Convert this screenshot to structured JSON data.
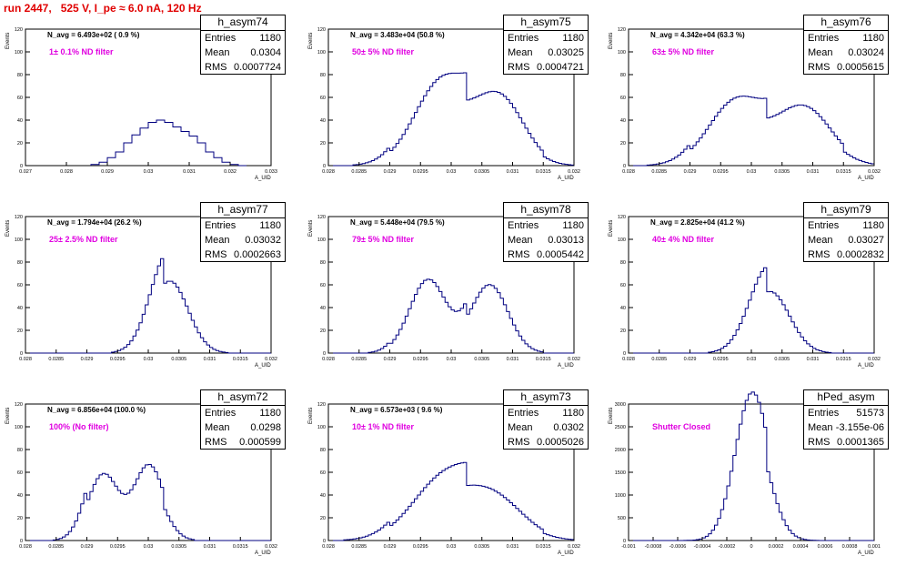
{
  "page": {
    "title": "run 2447,   525 V, I_pe ≈ 6.0 nA, 120 Hz"
  },
  "chart_data": [
    {
      "type": "histogram",
      "name": "h_asym74",
      "stats": {
        "entries": "1180",
        "mean": "0.0304",
        "rms": "0.0007724"
      },
      "navg": "N_avg = 6.493e+02 ( 0.9 %)",
      "filter": "1± 0.1% ND filter",
      "xlabel": "A_UID",
      "ylabel": "Events",
      "xlim": [
        0.027,
        0.033
      ],
      "ylim": [
        0,
        120
      ],
      "xticks": [
        "0.027",
        "0.028",
        "0.029",
        "0.03",
        "0.031",
        "0.032",
        "0.033"
      ],
      "yticks": [
        "0",
        "20",
        "40",
        "60",
        "80",
        "100",
        "120"
      ],
      "bins": [
        [
          0.0286,
          0,
          1
        ],
        [
          0.0288,
          1,
          3
        ],
        [
          0.029,
          3,
          7
        ],
        [
          0.0292,
          7,
          12
        ],
        [
          0.0294,
          12,
          20
        ],
        [
          0.0296,
          20,
          27
        ],
        [
          0.0298,
          27,
          33
        ],
        [
          0.03,
          33,
          38
        ],
        [
          0.0302,
          38,
          40
        ],
        [
          0.0304,
          40,
          38
        ],
        [
          0.0306,
          38,
          34
        ],
        [
          0.0308,
          34,
          30
        ],
        [
          0.031,
          30,
          26
        ],
        [
          0.0312,
          26,
          20
        ],
        [
          0.0314,
          20,
          12
        ],
        [
          0.0316,
          12,
          7
        ],
        [
          0.0318,
          7,
          3
        ],
        [
          0.032,
          3,
          1
        ],
        [
          0.0322,
          1,
          0
        ]
      ]
    },
    {
      "type": "histogram",
      "name": "h_asym75",
      "stats": {
        "entries": "1180",
        "mean": "0.03025",
        "rms": "0.0004721"
      },
      "navg": "N_avg = 3.483e+04 (50.8 %)",
      "filter": "50± 5% ND filter",
      "xlabel": "A_UID",
      "ylabel": "Events",
      "xlim": [
        0.028,
        0.032
      ],
      "ylim": [
        0,
        120
      ],
      "xticks": [
        "0.028",
        "0.0285",
        "0.029",
        "0.0295",
        "0.03",
        "0.0305",
        "0.031",
        "0.0315",
        "0.032"
      ],
      "yticks": [
        "0",
        "20",
        "40",
        "60",
        "80",
        "100",
        "120"
      ],
      "bins": [
        [
          0.0298,
          0.00045,
          70
        ],
        [
          0.03075,
          0.0004,
          60
        ]
      ]
    },
    {
      "type": "histogram",
      "name": "h_asym76",
      "stats": {
        "entries": "1180",
        "mean": "0.03024",
        "rms": "0.0005615"
      },
      "navg": "N_avg = 4.342e+04 (63.3 %)",
      "filter": "63± 5% ND filter",
      "xlabel": "A_UID",
      "ylabel": "Events",
      "xlim": [
        0.028,
        0.032
      ],
      "ylim": [
        0,
        120
      ],
      "xticks": [
        "0.028",
        "0.0285",
        "0.029",
        "0.0295",
        "0.03",
        "0.0305",
        "0.031",
        "0.0315",
        "0.032"
      ],
      "yticks": [
        "0",
        "20",
        "40",
        "60",
        "80",
        "100",
        "120"
      ],
      "bins": [
        [
          0.0297,
          0.00045,
          55
        ],
        [
          0.0308,
          0.00045,
          52
        ]
      ]
    },
    {
      "type": "histogram",
      "name": "h_asym77",
      "stats": {
        "entries": "1180",
        "mean": "0.03032",
        "rms": "0.0002663"
      },
      "navg": "N_avg = 1.794e+04 (26.2 %)",
      "filter": "25± 2.5% ND filter",
      "xlabel": "A_UID",
      "ylabel": "Events",
      "xlim": [
        0.028,
        0.032
      ],
      "ylim": [
        0,
        120
      ],
      "xticks": [
        "0.028",
        "0.0285",
        "0.029",
        "0.0295",
        "0.03",
        "0.0305",
        "0.031",
        "0.0315",
        "0.032"
      ],
      "yticks": [
        "0",
        "20",
        "40",
        "60",
        "80",
        "100",
        "120"
      ],
      "bins": [
        [
          0.03032,
          0.0003,
          75
        ]
      ]
    },
    {
      "type": "histogram",
      "name": "h_asym78",
      "stats": {
        "entries": "1180",
        "mean": "0.03013",
        "rms": "0.0005442"
      },
      "navg": "N_avg = 5.448e+04 (79.5 %)",
      "filter": "79± 5% ND filter",
      "xlabel": "A_UID",
      "ylabel": "Events",
      "xlim": [
        0.028,
        0.032
      ],
      "ylim": [
        0,
        120
      ],
      "xticks": [
        "0.028",
        "0.0285",
        "0.029",
        "0.0295",
        "0.03",
        "0.0305",
        "0.031",
        "0.0315",
        "0.032"
      ],
      "yticks": [
        "0",
        "20",
        "40",
        "60",
        "80",
        "100",
        "120"
      ],
      "bins": [
        [
          0.0296,
          0.0003,
          65
        ],
        [
          0.0306,
          0.0003,
          65
        ]
      ]
    },
    {
      "type": "histogram",
      "name": "h_asym79",
      "stats": {
        "entries": "1180",
        "mean": "0.03027",
        "rms": "0.0002832"
      },
      "navg": "N_avg = 2.825e+04 (41.2 %)",
      "filter": "40± 4% ND filter",
      "xlabel": "A_UID",
      "ylabel": "Events",
      "xlim": [
        0.028,
        0.032
      ],
      "ylim": [
        0,
        120
      ],
      "xticks": [
        "0.028",
        "0.0285",
        "0.029",
        "0.0295",
        "0.03",
        "0.0305",
        "0.031",
        "0.0315",
        "0.032"
      ],
      "yticks": [
        "0",
        "20",
        "40",
        "60",
        "80",
        "100",
        "120"
      ],
      "bins": [
        [
          0.03027,
          0.00032,
          65
        ]
      ]
    },
    {
      "type": "histogram",
      "name": "h_asym72",
      "stats": {
        "entries": "1180",
        "mean": "0.0298",
        "rms": "0.000599"
      },
      "navg": "N_avg = 6.856e+04 (100.0 %)",
      "filter": "100% (No filter)",
      "xlabel": "A_UID",
      "ylabel": "Events",
      "xlim": [
        0.028,
        0.032
      ],
      "ylim": [
        0,
        120
      ],
      "xticks": [
        "0.028",
        "0.0285",
        "0.029",
        "0.0295",
        "0.03",
        "0.0305",
        "0.031",
        "0.0315",
        "0.032"
      ],
      "yticks": [
        "0",
        "20",
        "40",
        "60",
        "80",
        "100",
        "120"
      ],
      "bins": [
        [
          0.02925,
          0.00025,
          65
        ],
        [
          0.03,
          0.00025,
          60
        ]
      ]
    },
    {
      "type": "histogram",
      "name": "h_asym73",
      "stats": {
        "entries": "1180",
        "mean": "0.0302",
        "rms": "0.0005026"
      },
      "navg": "N_avg = 6.573e+03 ( 9.6 %)",
      "filter": "10± 1% ND filter",
      "xlabel": "A_UID",
      "ylabel": "Events",
      "xlim": [
        0.028,
        0.032
      ],
      "ylim": [
        0,
        120
      ],
      "xticks": [
        "0.028",
        "0.0285",
        "0.029",
        "0.0295",
        "0.03",
        "0.0305",
        "0.031",
        "0.0315",
        "0.032"
      ],
      "yticks": [
        "0",
        "20",
        "40",
        "60",
        "80",
        "100",
        "120"
      ],
      "bins": [
        [
          0.02975,
          0.0005,
          45
        ],
        [
          0.0306,
          0.0005,
          40
        ]
      ]
    },
    {
      "type": "histogram",
      "name": "hPed_asym",
      "stats": {
        "entries": "51573",
        "mean": "-3.155e-06",
        "rms": "0.0001365"
      },
      "navg": "",
      "filter": "Shutter Closed",
      "xlabel": "A_UID",
      "ylabel": "Events",
      "xlim": [
        -0.001,
        0.001
      ],
      "ylim": [
        0,
        3000
      ],
      "xticks": [
        "-0.001",
        "-0.0008",
        "-0.0006",
        "-0.0004",
        "-0.0002",
        "0",
        "0.0002",
        "0.0004",
        "0.0006",
        "0.0008",
        "0.001"
      ],
      "yticks": [
        "0",
        "500",
        "1000",
        "1500",
        "2000",
        "2500",
        "3000"
      ],
      "bins": [
        [
          0.0,
          0.00014,
          2950
        ]
      ]
    }
  ]
}
